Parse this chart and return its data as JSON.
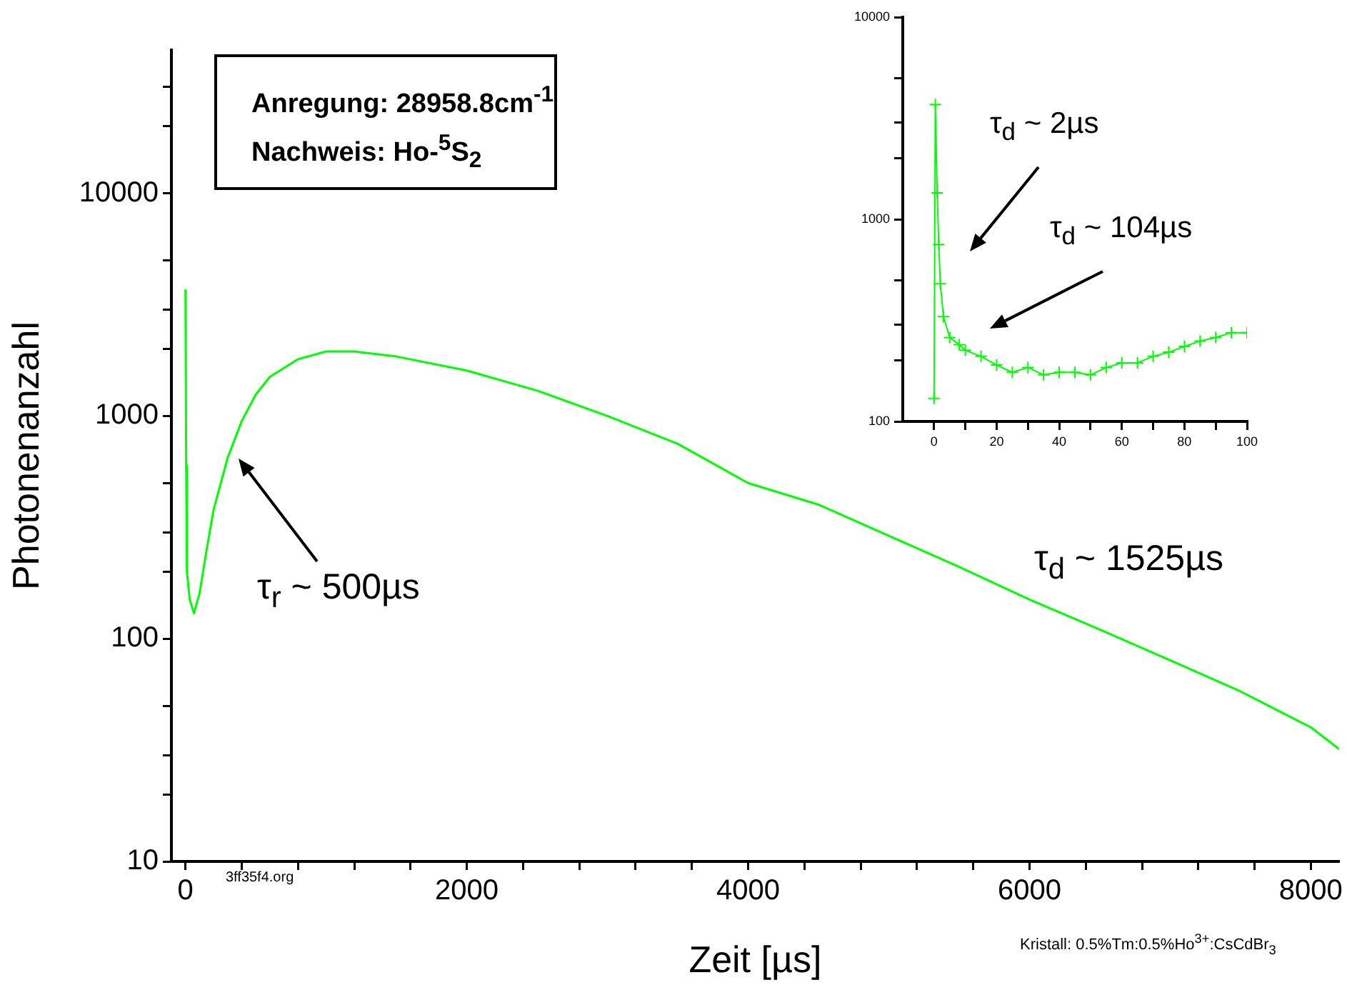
{
  "chart_data": [
    {
      "type": "line",
      "xlabel": "Zeit [µs]",
      "ylabel": "Photonenanzahl",
      "log": "y",
      "grid": false,
      "legend": false,
      "marker": "none",
      "line_style": "solid",
      "xlim": [
        -100,
        8200
      ],
      "ylim": [
        10,
        44000
      ],
      "xticks": [
        0,
        {
          "value": 400,
          "label": null
        },
        {
          "value": 800,
          "label": null
        },
        {
          "value": 1200,
          "label": null
        },
        {
          "value": 1600,
          "label": null
        },
        2000,
        {
          "value": 2400,
          "label": null
        },
        {
          "value": 2800,
          "label": null
        },
        {
          "value": 3200,
          "label": null
        },
        {
          "value": 3600,
          "label": null
        },
        4000,
        {
          "value": 4400,
          "label": null
        },
        {
          "value": 4800,
          "label": null
        },
        {
          "value": 5200,
          "label": null
        },
        {
          "value": 5600,
          "label": null
        },
        6000,
        {
          "value": 6400,
          "label": null
        },
        {
          "value": 6800,
          "label": null
        },
        {
          "value": 7200,
          "label": null
        },
        {
          "value": 7600,
          "label": null
        },
        8000
      ],
      "yticks": [
        10,
        {
          "value": 20,
          "label": null
        },
        {
          "value": 30,
          "label": null
        },
        {
          "value": 50,
          "label": null
        },
        100,
        {
          "value": 200,
          "label": null
        },
        {
          "value": 300,
          "label": null
        },
        {
          "value": 500,
          "label": null
        },
        1000,
        {
          "value": 2000,
          "label": null
        },
        {
          "value": 3000,
          "label": null
        },
        {
          "value": 5000,
          "label": null
        },
        10000,
        {
          "value": 20000,
          "label": null
        },
        {
          "value": 30000,
          "label": null
        }
      ],
      "series": [
        {
          "color": "#00ff00",
          "x": [
            0,
            5,
            10,
            30,
            60,
            100,
            150,
            200,
            300,
            400,
            500,
            600,
            800,
            1000,
            1200,
            1500,
            2000,
            2500,
            3000,
            3500,
            4000,
            4500,
            5000,
            5500,
            6000,
            6500,
            7000,
            7500,
            8000,
            8200
          ],
          "values": [
            3700,
            600,
            200,
            150,
            130,
            160,
            250,
            380,
            650,
            950,
            1250,
            1500,
            1800,
            1950,
            1950,
            1850,
            1600,
            1300,
            1000,
            750,
            500,
            400,
            290,
            210,
            150,
            110,
            80,
            58,
            40,
            32
          ]
        }
      ],
      "annotations": [
        "Anregung: 28958.8cm$^{-1}$",
        "Nachweis: Ho-$^{5}$S$_{2}$",
        "τ$_{r}$ ~ 500µs",
        "τ$_{d}$ ~ 1525µs",
        "3ff35f4.org",
        "Kristall: 0.5%Tm:0.5%Ho$^{3+}$:CsCdBr$_{3}$"
      ]
    },
    {
      "type": "line",
      "log": "y",
      "grid": false,
      "legend": false,
      "marker": "cross",
      "line_style": "solid",
      "xlim": [
        -10,
        100
      ],
      "ylim": [
        100,
        10000
      ],
      "xticks": [
        0,
        {
          "value": 10,
          "label": null
        },
        20,
        {
          "value": 30,
          "label": null
        },
        40,
        {
          "value": 50,
          "label": null
        },
        60,
        {
          "value": 70,
          "label": null
        },
        80,
        {
          "value": 90,
          "label": null
        },
        100
      ],
      "yticks": [
        100,
        {
          "value": 200,
          "label": null
        },
        {
          "value": 300,
          "label": null
        },
        {
          "value": 500,
          "label": null
        },
        1000,
        {
          "value": 2000,
          "label": null
        },
        {
          "value": 3000,
          "label": null
        },
        {
          "value": 5000,
          "label": null
        },
        10000
      ],
      "series": [
        {
          "color": "#00ff00",
          "x": [
            0,
            0.4,
            1,
            1.5,
            2,
            3,
            5,
            8,
            10,
            15,
            20,
            25,
            30,
            35,
            40,
            45,
            50,
            55,
            60,
            65,
            70,
            75,
            80,
            85,
            90,
            95,
            100
          ],
          "values": [
            130,
            3700,
            1350,
            750,
            480,
            330,
            260,
            240,
            225,
            210,
            190,
            175,
            185,
            170,
            175,
            175,
            170,
            185,
            195,
            195,
            210,
            220,
            235,
            250,
            260,
            275,
            275
          ]
        }
      ],
      "annotations": [
        "τ$_{d}$ ~ 2µs",
        "τ$_{d}$ ~ 104µs"
      ]
    }
  ]
}
